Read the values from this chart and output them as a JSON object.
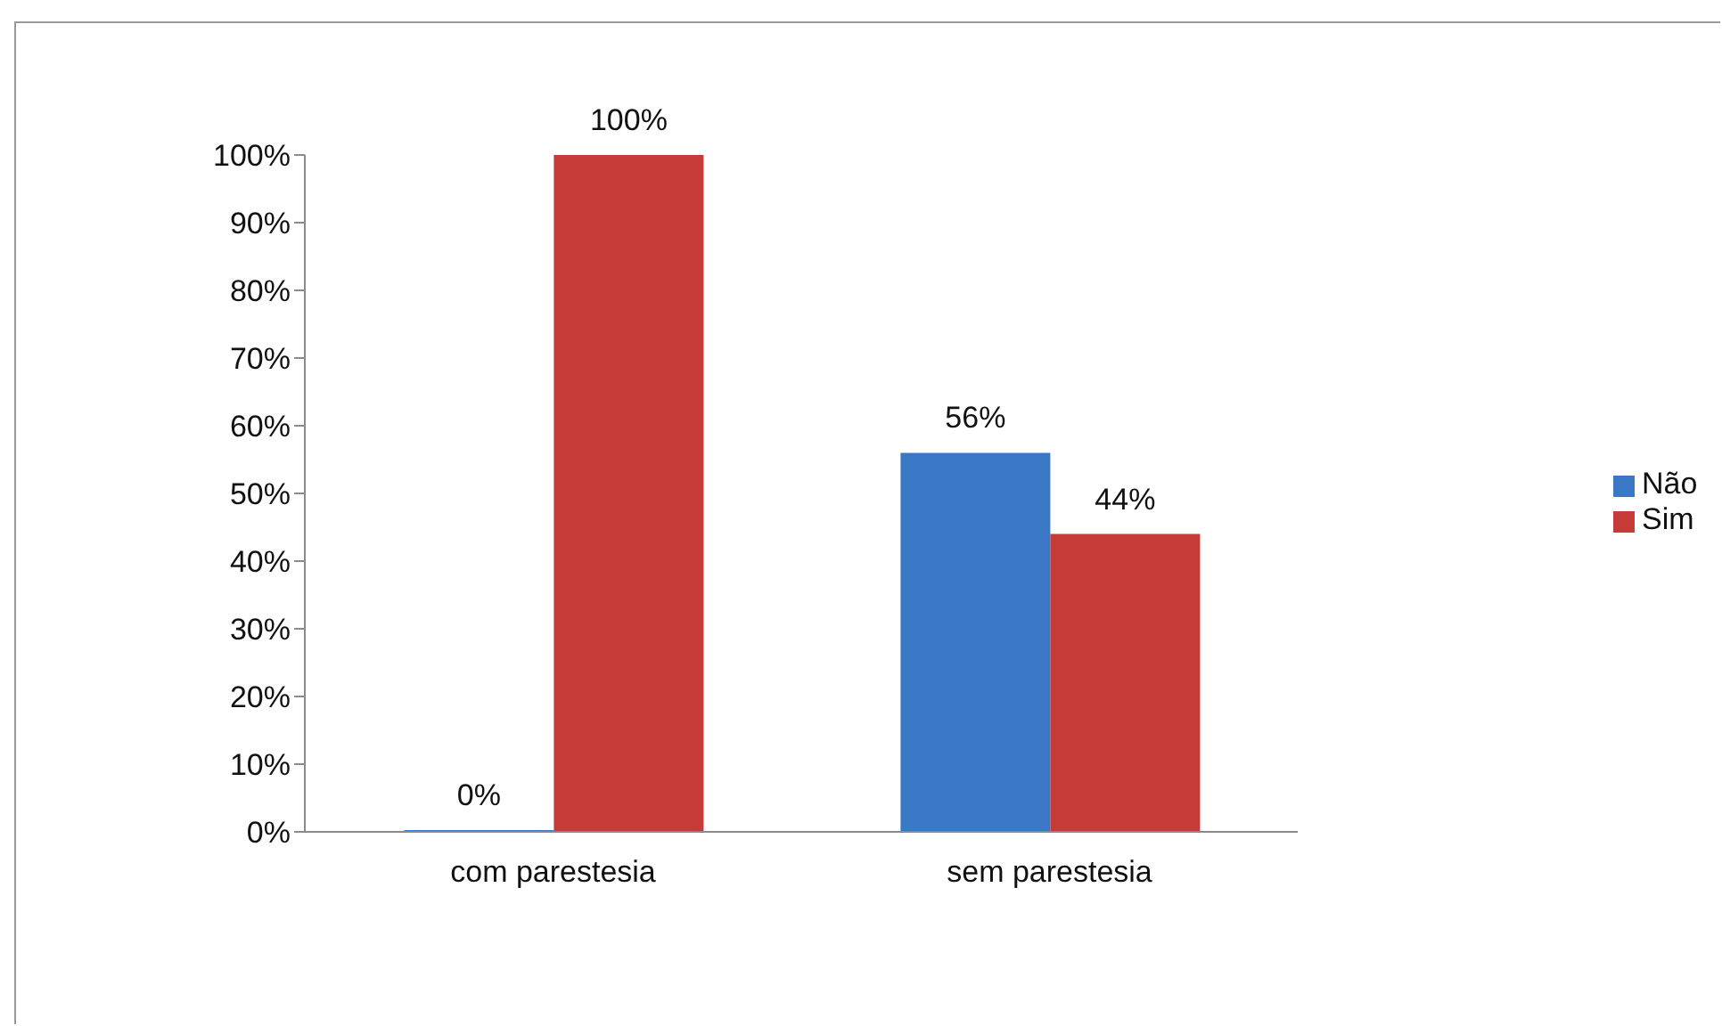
{
  "chart_data": {
    "type": "bar",
    "categories": [
      "com parestesia",
      "sem parestesia"
    ],
    "series": [
      {
        "name": "Não",
        "color": "#3a78c6",
        "values": [
          0,
          56
        ],
        "value_labels": [
          "0%",
          "56%"
        ]
      },
      {
        "name": "Sim",
        "color": "#c63b37",
        "values": [
          100,
          44
        ],
        "value_labels": [
          "100%",
          "44%"
        ]
      }
    ],
    "ylim": [
      0,
      100
    ],
    "yticks": [
      {
        "value": 0,
        "label": "0%"
      },
      {
        "value": 10,
        "label": "10%"
      },
      {
        "value": 20,
        "label": "20%"
      },
      {
        "value": 30,
        "label": "30%"
      },
      {
        "value": 40,
        "label": "40%"
      },
      {
        "value": 50,
        "label": "50%"
      },
      {
        "value": 60,
        "label": "60%"
      },
      {
        "value": 70,
        "label": "70%"
      },
      {
        "value": 80,
        "label": "80%"
      },
      {
        "value": 90,
        "label": "90%"
      },
      {
        "value": 100,
        "label": "100%"
      }
    ],
    "grid": false,
    "legend": "right"
  }
}
